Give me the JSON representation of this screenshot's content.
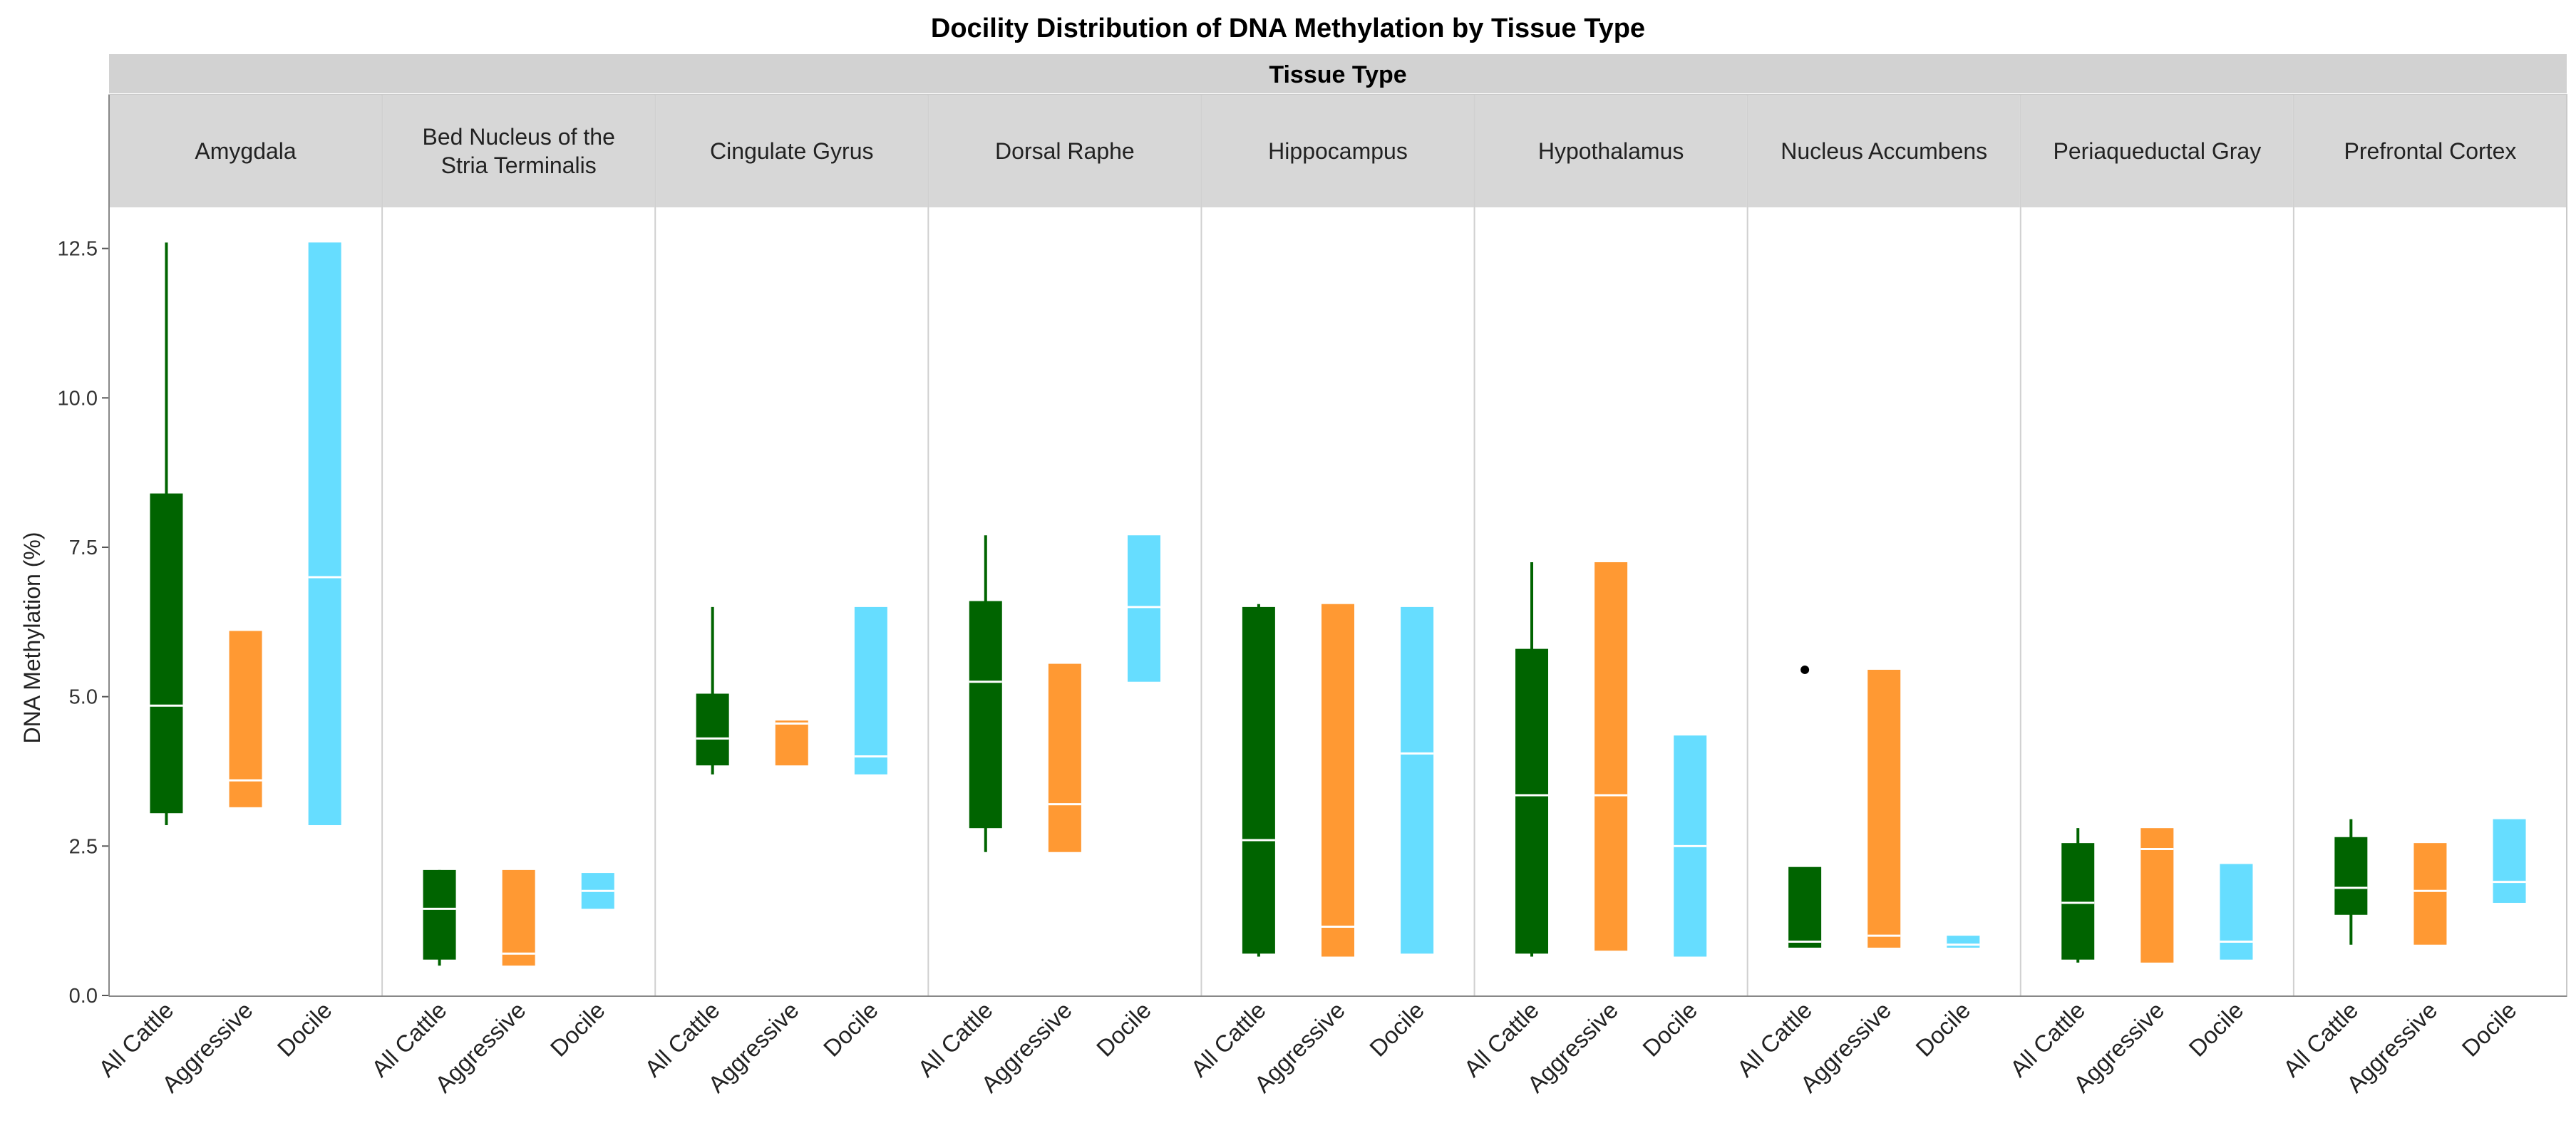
{
  "chart_data": {
    "type": "box",
    "title": "Docility Distribution of DNA Methylation by Tissue Type",
    "facet_title": "Tissue Type",
    "ylabel": "DNA Methylation (%)",
    "xlabel": "",
    "ylim": [
      0,
      13.2
    ],
    "yticks": [
      0.0,
      2.5,
      5.0,
      7.5,
      10.0,
      12.5
    ],
    "ytick_labels": [
      "0.0",
      "2.5",
      "5.0",
      "7.5",
      "10.0",
      "12.5"
    ],
    "categories": [
      "All Cattle",
      "Aggressive",
      "Docile"
    ],
    "series_colors": {
      "All Cattle": "#006400",
      "Aggressive": "#FF9933",
      "Docile": "#66DDFF"
    },
    "median_color": "#FFFFFF",
    "panels": [
      {
        "tissue": "Amygdala",
        "label_lines": [
          "Amygdala"
        ],
        "boxes": [
          {
            "group": "All Cattle",
            "min": 2.85,
            "q1": 3.05,
            "median": 4.85,
            "q3": 8.4,
            "max": 12.6
          },
          {
            "group": "Aggressive",
            "min": 3.15,
            "q1": 3.15,
            "median": 3.6,
            "q3": 6.1,
            "max": 6.1
          },
          {
            "group": "Docile",
            "min": 2.85,
            "q1": 2.85,
            "median": 7.0,
            "q3": 12.6,
            "max": 12.6
          }
        ]
      },
      {
        "tissue": "Bed Nucleus of the Stria Terminalis",
        "label_lines": [
          "Bed Nucleus of the",
          "Stria Terminalis"
        ],
        "boxes": [
          {
            "group": "All Cattle",
            "min": 0.5,
            "q1": 0.6,
            "median": 1.45,
            "q3": 2.1,
            "max": 2.1
          },
          {
            "group": "Aggressive",
            "min": 0.5,
            "q1": 0.5,
            "median": 0.7,
            "q3": 2.1,
            "max": 2.1
          },
          {
            "group": "Docile",
            "min": 1.45,
            "q1": 1.45,
            "median": 1.75,
            "q3": 2.05,
            "max": 2.05
          }
        ]
      },
      {
        "tissue": "Cingulate Gyrus",
        "label_lines": [
          "Cingulate Gyrus"
        ],
        "boxes": [
          {
            "group": "All Cattle",
            "min": 3.7,
            "q1": 3.85,
            "median": 4.3,
            "q3": 5.05,
            "max": 6.5
          },
          {
            "group": "Aggressive",
            "min": 3.85,
            "q1": 3.85,
            "median": 4.55,
            "q3": 4.6,
            "max": 4.6
          },
          {
            "group": "Docile",
            "min": 3.7,
            "q1": 3.7,
            "median": 4.0,
            "q3": 6.5,
            "max": 6.5
          }
        ]
      },
      {
        "tissue": "Dorsal Raphe",
        "label_lines": [
          "Dorsal Raphe"
        ],
        "boxes": [
          {
            "group": "All Cattle",
            "min": 2.4,
            "q1": 2.8,
            "median": 5.25,
            "q3": 6.6,
            "max": 7.7
          },
          {
            "group": "Aggressive",
            "min": 2.4,
            "q1": 2.4,
            "median": 3.2,
            "q3": 5.55,
            "max": 5.55
          },
          {
            "group": "Docile",
            "min": 5.25,
            "q1": 5.25,
            "median": 6.5,
            "q3": 7.7,
            "max": 7.7
          }
        ]
      },
      {
        "tissue": "Hippocampus",
        "label_lines": [
          "Hippocampus"
        ],
        "boxes": [
          {
            "group": "All Cattle",
            "min": 0.65,
            "q1": 0.7,
            "median": 2.6,
            "q3": 6.5,
            "max": 6.55
          },
          {
            "group": "Aggressive",
            "min": 0.65,
            "q1": 0.65,
            "median": 1.15,
            "q3": 6.55,
            "max": 6.55
          },
          {
            "group": "Docile",
            "min": 0.7,
            "q1": 0.7,
            "median": 4.05,
            "q3": 6.5,
            "max": 6.5
          }
        ]
      },
      {
        "tissue": "Hypothalamus",
        "label_lines": [
          "Hypothalamus"
        ],
        "boxes": [
          {
            "group": "All Cattle",
            "min": 0.65,
            "q1": 0.7,
            "median": 3.35,
            "q3": 5.8,
            "max": 7.25
          },
          {
            "group": "Aggressive",
            "min": 0.75,
            "q1": 0.75,
            "median": 3.35,
            "q3": 7.25,
            "max": 7.25
          },
          {
            "group": "Docile",
            "min": 0.65,
            "q1": 0.65,
            "median": 2.5,
            "q3": 4.35,
            "max": 4.35
          }
        ]
      },
      {
        "tissue": "Nucleus Accumbens",
        "label_lines": [
          "Nucleus Accumbens"
        ],
        "boxes": [
          {
            "group": "All Cattle",
            "min": 0.8,
            "q1": 0.8,
            "median": 0.9,
            "q3": 2.15,
            "max": 2.15,
            "outliers": [
              5.45
            ]
          },
          {
            "group": "Aggressive",
            "min": 0.8,
            "q1": 0.8,
            "median": 1.0,
            "q3": 5.45,
            "max": 5.45
          },
          {
            "group": "Docile",
            "min": 0.8,
            "q1": 0.8,
            "median": 0.85,
            "q3": 1.0,
            "max": 1.0
          }
        ]
      },
      {
        "tissue": "Periaqueductal Gray",
        "label_lines": [
          "Periaqueductal Gray"
        ],
        "boxes": [
          {
            "group": "All Cattle",
            "min": 0.55,
            "q1": 0.6,
            "median": 1.55,
            "q3": 2.55,
            "max": 2.8
          },
          {
            "group": "Aggressive",
            "min": 0.55,
            "q1": 0.55,
            "median": 2.45,
            "q3": 2.8,
            "max": 2.8
          },
          {
            "group": "Docile",
            "min": 0.6,
            "q1": 0.6,
            "median": 0.9,
            "q3": 2.2,
            "max": 2.2
          }
        ]
      },
      {
        "tissue": "Prefrontal Cortex",
        "label_lines": [
          "Prefrontal Cortex"
        ],
        "boxes": [
          {
            "group": "All Cattle",
            "min": 0.85,
            "q1": 1.35,
            "median": 1.8,
            "q3": 2.65,
            "max": 2.95
          },
          {
            "group": "Aggressive",
            "min": 0.85,
            "q1": 0.85,
            "median": 1.75,
            "q3": 2.55,
            "max": 2.55
          },
          {
            "group": "Docile",
            "min": 1.55,
            "q1": 1.55,
            "median": 1.9,
            "q3": 2.95,
            "max": 2.95
          }
        ]
      }
    ]
  }
}
